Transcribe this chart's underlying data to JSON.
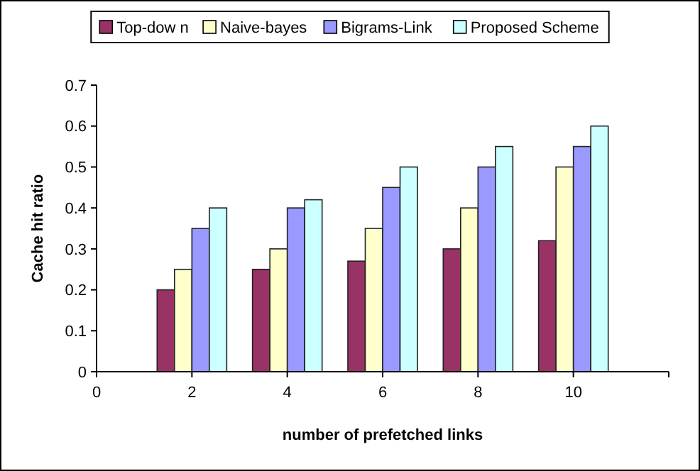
{
  "chart_data": {
    "type": "bar",
    "xlabel": "number of prefetched links",
    "ylabel": "Cache hit ratio",
    "x": [
      2,
      4,
      6,
      8,
      10
    ],
    "xlim": [
      0,
      12
    ],
    "xticks": [
      0,
      2,
      4,
      6,
      8,
      10,
      {
        "value": 12,
        "label": null
      }
    ],
    "ylim": [
      0,
      0.7
    ],
    "yticks": [
      0,
      0.1,
      0.2,
      0.3,
      0.4,
      0.5,
      0.6,
      0.7
    ],
    "grid": false,
    "legend": "top",
    "series": [
      {
        "name": "Top-dow n",
        "color": "#993366",
        "values": [
          0.2,
          0.25,
          0.27,
          0.3,
          0.32
        ]
      },
      {
        "name": "Naive-bayes",
        "color": "#ffffcc",
        "values": [
          0.25,
          0.3,
          0.35,
          0.4,
          0.5
        ]
      },
      {
        "name": "Bigrams-Link",
        "color": "#9999ff",
        "values": [
          0.35,
          0.4,
          0.45,
          0.5,
          0.55
        ]
      },
      {
        "name": "Proposed Scheme",
        "color": "#ccffff",
        "values": [
          0.4,
          0.42,
          0.5,
          0.55,
          0.6
        ]
      }
    ]
  }
}
